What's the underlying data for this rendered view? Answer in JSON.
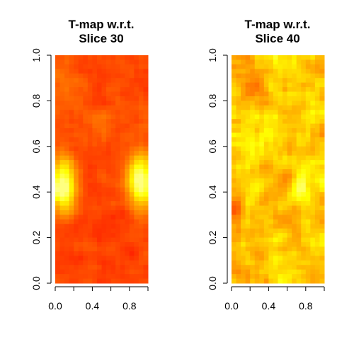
{
  "chart_data": [
    {
      "type": "heatmap",
      "title_lines": [
        "T-map w.r.t.",
        "Slice 30"
      ],
      "xlabel": "",
      "ylabel": "",
      "xlim": [
        0,
        1
      ],
      "ylim": [
        0,
        1
      ],
      "x_ticks": [
        0.0,
        0.4,
        0.8
      ],
      "x_tick_labels": [
        "0.0",
        "0.4",
        "0.8"
      ],
      "x_minor_ticks": [
        0.0,
        0.2,
        0.4,
        0.6,
        0.8,
        1.0
      ],
      "y_ticks": [
        0.0,
        0.2,
        0.4,
        0.6,
        0.8,
        1.0
      ],
      "y_tick_labels": [
        "0.0",
        "0.2",
        "0.4",
        "0.6",
        "0.8",
        "1.0"
      ],
      "colormap": "heat",
      "palette": [
        "#ff0000",
        "#ff4000",
        "#ff8000",
        "#ffbf00",
        "#ffff00",
        "#ffff80"
      ],
      "grid": false,
      "legend": "none",
      "grid_cols": 20,
      "grid_rows": 50,
      "base_level": 0.2,
      "hotspots": [
        {
          "x": 0.08,
          "y": 0.43,
          "rx": 0.1,
          "ry": 0.08,
          "strength": 0.9
        },
        {
          "x": 0.92,
          "y": 0.45,
          "rx": 0.1,
          "ry": 0.08,
          "strength": 0.9
        },
        {
          "x": 0.12,
          "y": 0.88,
          "rx": 0.14,
          "ry": 0.1,
          "strength": 0.15
        },
        {
          "x": 0.6,
          "y": 0.72,
          "rx": 0.2,
          "ry": 0.08,
          "strength": 0.12
        }
      ],
      "noise": 0.15,
      "seed": 30
    },
    {
      "type": "heatmap",
      "title_lines": [
        "T-map w.r.t.",
        "Slice 40"
      ],
      "xlabel": "",
      "ylabel": "",
      "xlim": [
        0,
        1
      ],
      "ylim": [
        0,
        1
      ],
      "x_ticks": [
        0.0,
        0.4,
        0.8
      ],
      "x_tick_labels": [
        "0.0",
        "0.4",
        "0.8"
      ],
      "x_minor_ticks": [
        0.0,
        0.2,
        0.4,
        0.6,
        0.8,
        1.0
      ],
      "y_ticks": [
        0.0,
        0.2,
        0.4,
        0.6,
        0.8,
        1.0
      ],
      "y_tick_labels": [
        "0.0",
        "0.2",
        "0.4",
        "0.6",
        "0.8",
        "1.0"
      ],
      "colormap": "heat",
      "palette": [
        "#ff0000",
        "#ff4000",
        "#ff8000",
        "#ffbf00",
        "#ffff00",
        "#ffff80"
      ],
      "grid": false,
      "legend": "none",
      "grid_cols": 20,
      "grid_rows": 50,
      "base_level": 0.62,
      "hotspots": [
        {
          "x": 0.75,
          "y": 0.4,
          "rx": 0.06,
          "ry": 0.05,
          "strength": 0.3
        },
        {
          "x": 0.3,
          "y": 0.65,
          "rx": 0.15,
          "ry": 0.1,
          "strength": 0.15
        },
        {
          "x": 0.05,
          "y": 0.3,
          "rx": 0.05,
          "ry": 0.06,
          "strength": -0.4
        },
        {
          "x": 0.25,
          "y": 0.85,
          "rx": 0.1,
          "ry": 0.06,
          "strength": -0.25
        }
      ],
      "noise": 0.3,
      "seed": 40
    }
  ]
}
